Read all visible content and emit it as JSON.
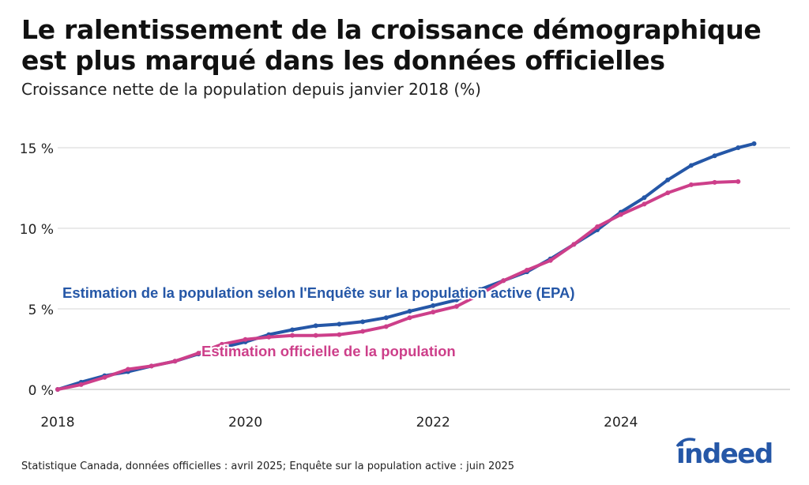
{
  "title": "Le ralentissement de la croissance démographique est plus marqué dans les données officielles",
  "subtitle": "Croissance nette de la population depuis janvier 2018 (%)",
  "source": "Statistique Canada, données officielles : avril 2025; Enquête sur la population active : juin 2025",
  "logo": "indeed",
  "chart_data": {
    "type": "line",
    "title": "Le ralentissement de la croissance démographique est plus marqué dans les données officielles",
    "ylabel": "Croissance nette de la population depuis janvier 2018 (%)",
    "xlim": [
      2018,
      2025.7
    ],
    "ylim": [
      0,
      15.5
    ],
    "x_ticks": [
      {
        "v": 2018,
        "label": "2018"
      },
      {
        "v": 2020,
        "label": "2020"
      },
      {
        "v": 2022,
        "label": "2022"
      },
      {
        "v": 2024,
        "label": "2024"
      }
    ],
    "y_ticks": [
      {
        "v": 0,
        "label": "0 %"
      },
      {
        "v": 5,
        "label": "5 %"
      },
      {
        "v": 10,
        "label": "10 %"
      },
      {
        "v": 15,
        "label": "15 %"
      }
    ],
    "grid": true,
    "series": [
      {
        "name": "Estimation de la population selon l'Enquête sur la population active (EPA)",
        "color": "#2557a7",
        "x": [
          2018,
          2018.25,
          2018.5,
          2018.75,
          2019,
          2019.25,
          2019.5,
          2019.75,
          2020,
          2020.25,
          2020.5,
          2020.75,
          2021,
          2021.25,
          2021.5,
          2021.75,
          2022,
          2022.25,
          2022.5,
          2022.75,
          2023,
          2023.25,
          2023.5,
          2023.75,
          2024,
          2024.25,
          2024.5,
          2024.75,
          2025,
          2025.25,
          2025.42
        ],
        "y": [
          0,
          0.45,
          0.85,
          1.1,
          1.45,
          1.75,
          2.2,
          2.6,
          2.95,
          3.4,
          3.7,
          3.95,
          4.05,
          4.2,
          4.45,
          4.85,
          5.2,
          5.55,
          6.2,
          6.75,
          7.3,
          8.1,
          9.0,
          9.9,
          11.0,
          11.9,
          13.0,
          13.9,
          14.5,
          15.0,
          15.25
        ]
      },
      {
        "name": "Estimation officielle de la population",
        "color": "#cd3f8a",
        "x": [
          2018,
          2018.25,
          2018.5,
          2018.75,
          2019,
          2019.25,
          2019.5,
          2019.75,
          2020,
          2020.25,
          2020.5,
          2020.75,
          2021,
          2021.25,
          2021.5,
          2021.75,
          2022,
          2022.25,
          2022.5,
          2022.75,
          2023,
          2023.25,
          2023.5,
          2023.75,
          2024,
          2024.25,
          2024.5,
          2024.75,
          2025,
          2025.25
        ],
        "y": [
          0,
          0.3,
          0.75,
          1.25,
          1.45,
          1.75,
          2.25,
          2.8,
          3.1,
          3.25,
          3.35,
          3.35,
          3.4,
          3.6,
          3.9,
          4.45,
          4.8,
          5.15,
          5.9,
          6.75,
          7.4,
          8.0,
          9.0,
          10.1,
          10.85,
          11.5,
          12.2,
          12.7,
          12.85,
          12.9
        ]
      }
    ]
  }
}
